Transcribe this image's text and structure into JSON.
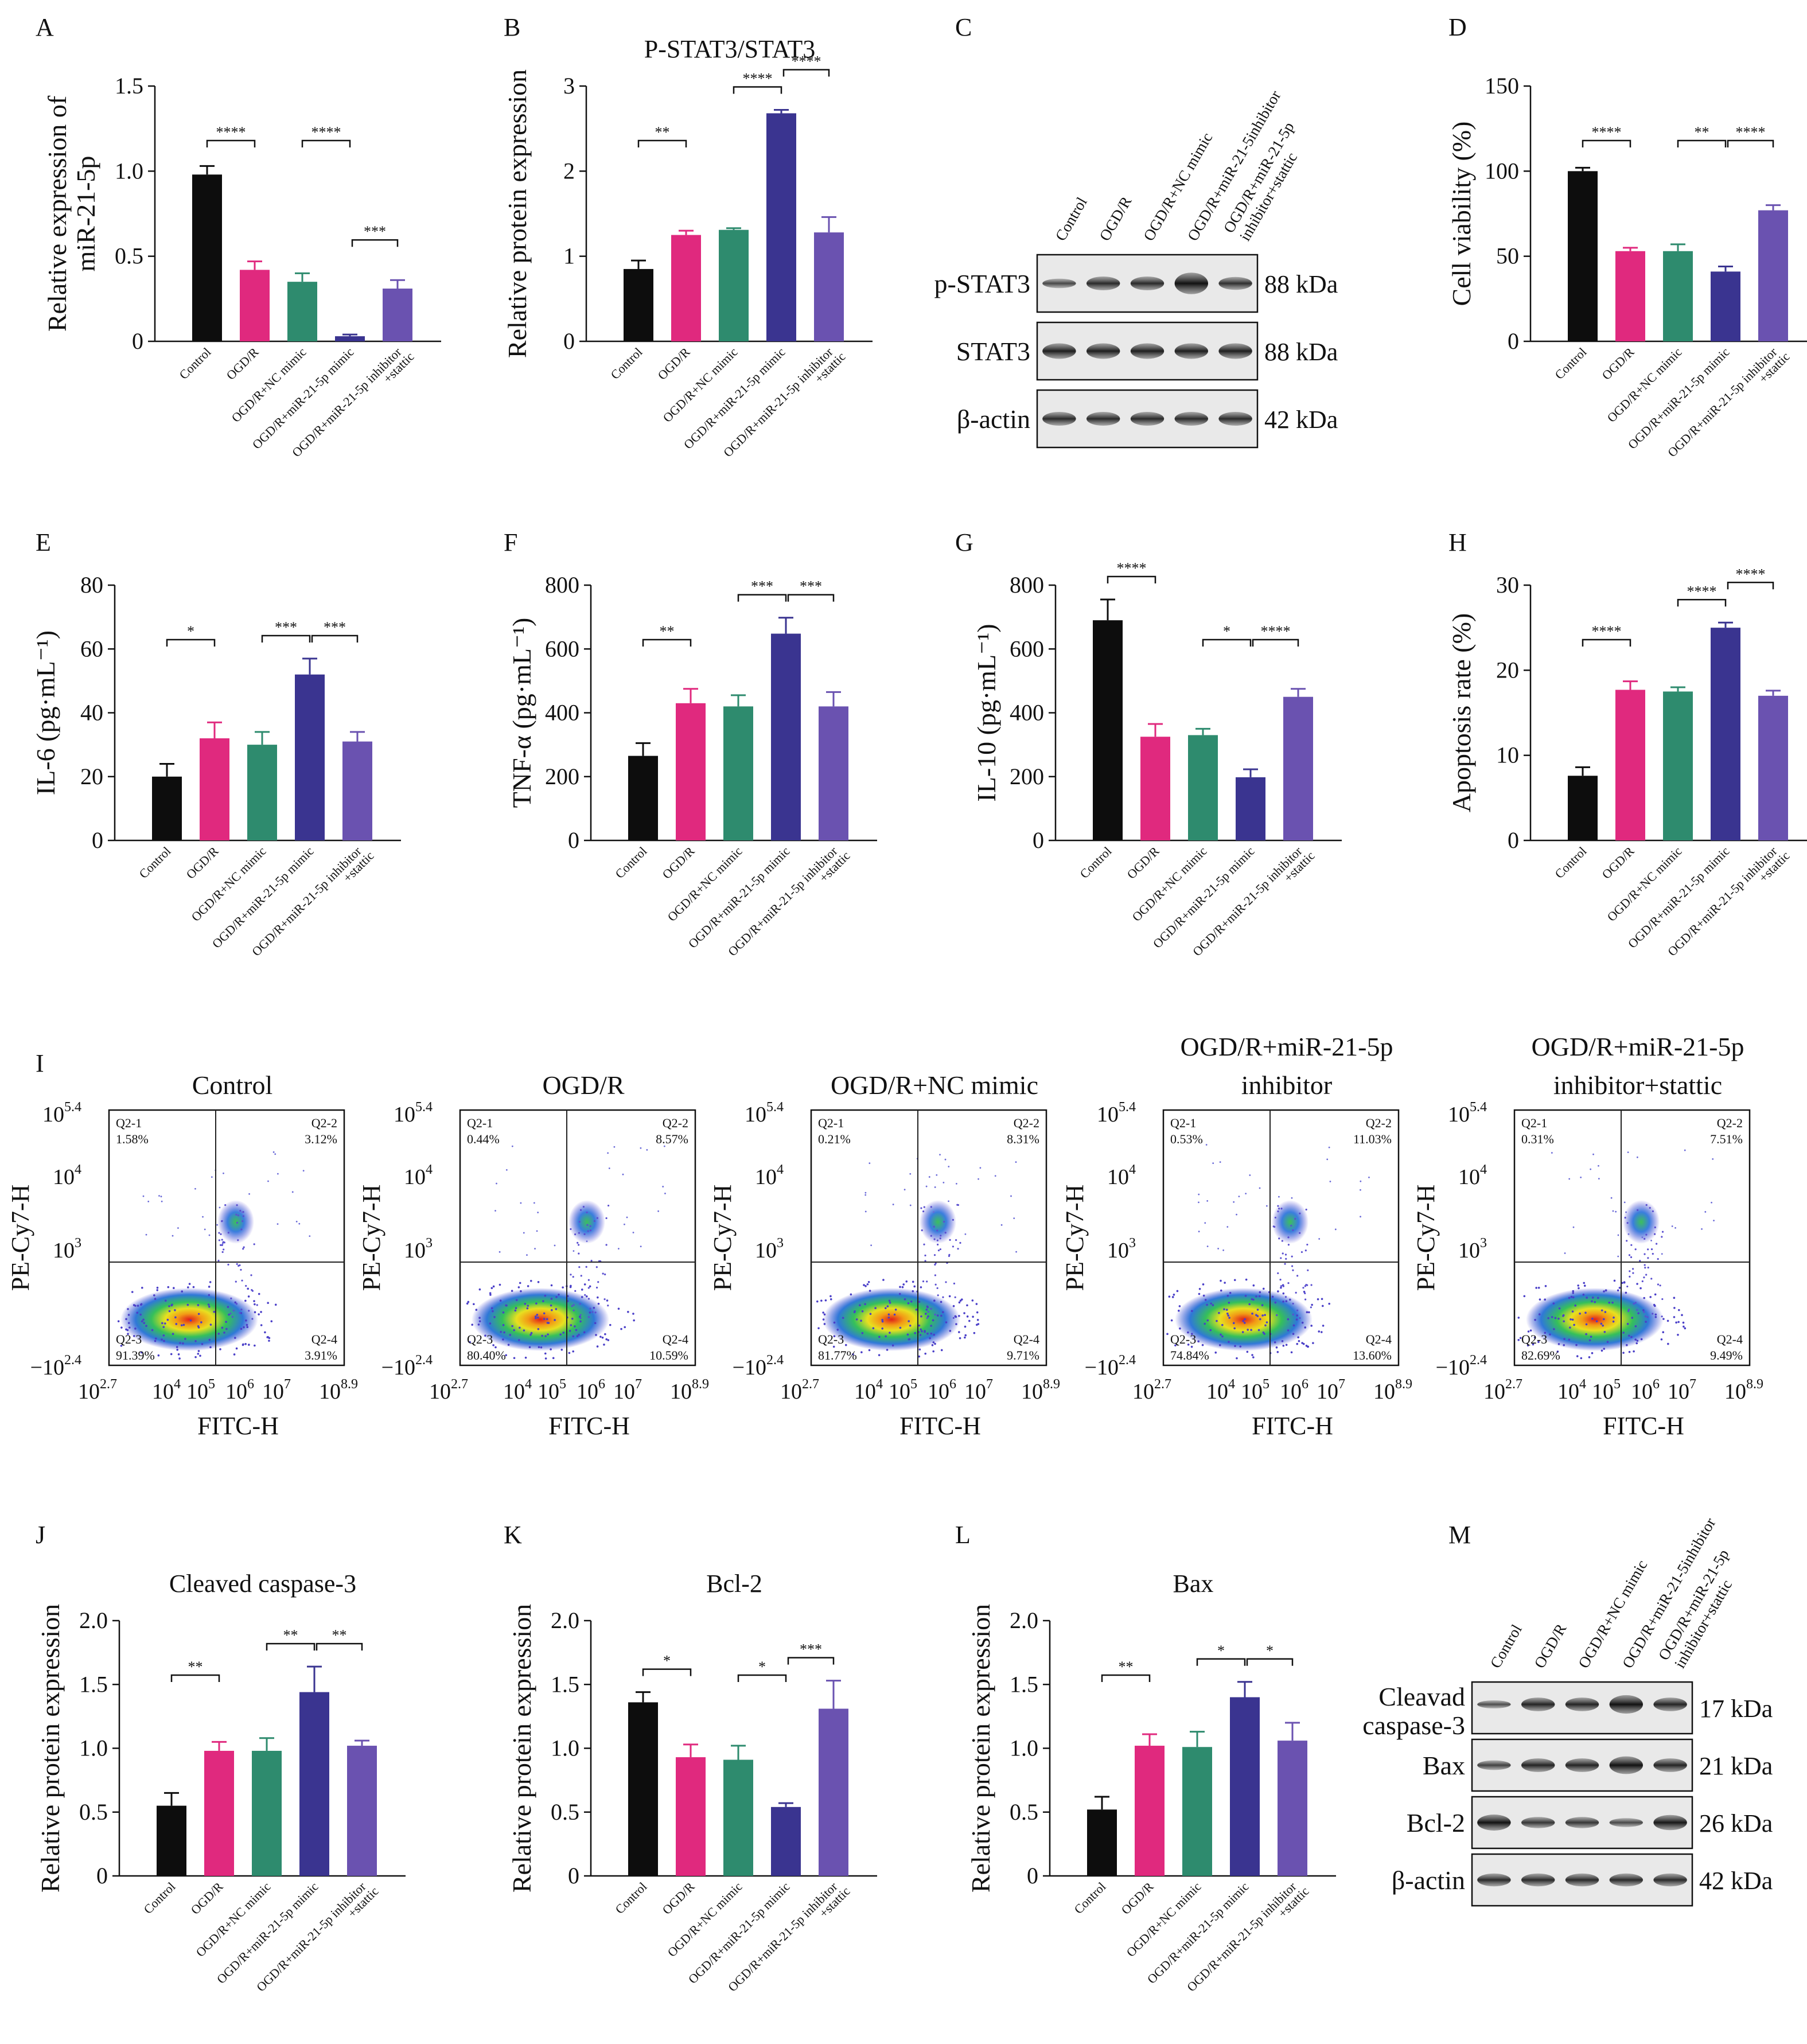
{
  "groups": [
    "Control",
    "OGD/R",
    "OGD/R+NC mimic",
    "OGD/R+miR-21-5p mimic",
    "OGD/R+miR-21-5p inhibitor",
    "+stattic"
  ],
  "colors": [
    "#0d0d0d",
    "#e0297e",
    "#2e8b6e",
    "#3a3490",
    "#6a52b0"
  ],
  "panel_letters": {
    "A": "A",
    "B": "B",
    "C": "C",
    "D": "D",
    "E": "E",
    "F": "F",
    "G": "G",
    "H": "H",
    "I": "I",
    "J": "J",
    "K": "K",
    "L": "L",
    "M": "M"
  },
  "chart_data": [
    {
      "id": "A",
      "type": "bar",
      "title": "",
      "ylabel": "Relative expression of miR-21-5p",
      "ylim": [
        0,
        1.5
      ],
      "yticks": [
        "0",
        "0.5",
        "1.0",
        "1.5"
      ],
      "values": [
        0.98,
        0.42,
        0.35,
        0.03,
        0.31
      ],
      "errors": [
        0.05,
        0.05,
        0.05,
        0.01,
        0.05
      ],
      "significance": [
        {
          "from": 0,
          "to": 1,
          "label": "****",
          "level": 0
        },
        {
          "from": 2,
          "to": 3,
          "label": "****",
          "level": 0
        },
        {
          "from": 3,
          "to": 4,
          "label": "***",
          "level": 1
        }
      ]
    },
    {
      "id": "B",
      "type": "bar",
      "title": "P-STAT3/STAT3",
      "ylabel": "Relative protein expression",
      "ylim": [
        0,
        3
      ],
      "yticks": [
        "0",
        "1",
        "2",
        "3"
      ],
      "values": [
        0.85,
        1.25,
        1.31,
        2.68,
        1.28
      ],
      "errors": [
        0.1,
        0.05,
        0.02,
        0.04,
        0.18
      ],
      "significance": [
        {
          "from": 0,
          "to": 1,
          "label": "**",
          "level": 0
        },
        {
          "from": 2,
          "to": 3,
          "label": "****",
          "level": 0
        },
        {
          "from": 3,
          "to": 4,
          "label": "****",
          "level": 1
        }
      ]
    },
    {
      "id": "D",
      "type": "bar",
      "title": "",
      "ylabel": "Cell viability (%)",
      "ylim": [
        0,
        150
      ],
      "yticks": [
        "0",
        "50",
        "100",
        "150"
      ],
      "values": [
        100,
        53,
        53,
        41,
        77
      ],
      "errors": [
        2,
        2,
        4,
        3,
        3
      ],
      "significance": [
        {
          "from": 0,
          "to": 1,
          "label": "****",
          "level": 0
        },
        {
          "from": 2,
          "to": 3,
          "label": "**",
          "level": 0
        },
        {
          "from": 3,
          "to": 4,
          "label": "****",
          "level": 0
        }
      ]
    },
    {
      "id": "E",
      "type": "bar",
      "title": "",
      "ylabel": "IL-6 (pg·mL⁻¹)",
      "ylim": [
        0,
        80
      ],
      "yticks": [
        "0",
        "20",
        "40",
        "60",
        "80"
      ],
      "values": [
        20,
        32,
        30,
        52,
        31
      ],
      "errors": [
        4,
        5,
        4,
        5,
        3
      ],
      "significance": [
        {
          "from": 0,
          "to": 1,
          "label": "*",
          "level": 0
        },
        {
          "from": 2,
          "to": 3,
          "label": "***",
          "level": 0
        },
        {
          "from": 3,
          "to": 4,
          "label": "***",
          "level": 0
        }
      ]
    },
    {
      "id": "F",
      "type": "bar",
      "title": "",
      "ylabel": "TNF-α (pg·mL⁻¹)",
      "ylim": [
        0,
        800
      ],
      "yticks": [
        "0",
        "200",
        "400",
        "600",
        "800"
      ],
      "values": [
        265,
        430,
        420,
        648,
        420
      ],
      "errors": [
        40,
        45,
        35,
        50,
        45
      ],
      "significance": [
        {
          "from": 0,
          "to": 1,
          "label": "**",
          "level": 0
        },
        {
          "from": 2,
          "to": 3,
          "label": "***",
          "level": 0
        },
        {
          "from": 3,
          "to": 4,
          "label": "***",
          "level": 0
        }
      ]
    },
    {
      "id": "G",
      "type": "bar",
      "title": "",
      "ylabel": "IL-10 (pg·mL⁻¹)",
      "ylim": [
        0,
        800
      ],
      "yticks": [
        "0",
        "200",
        "400",
        "600",
        "800"
      ],
      "values": [
        690,
        325,
        330,
        198,
        450
      ],
      "errors": [
        65,
        40,
        20,
        25,
        25
      ],
      "significance": [
        {
          "from": 0,
          "to": 1,
          "label": "****",
          "level": 0
        },
        {
          "from": 2,
          "to": 3,
          "label": "*",
          "level": 0
        },
        {
          "from": 3,
          "to": 4,
          "label": "****",
          "level": 0
        }
      ]
    },
    {
      "id": "H",
      "type": "bar",
      "title": "",
      "ylabel": "Apoptosis rate (%)",
      "ylim": [
        0,
        30
      ],
      "yticks": [
        "0",
        "10",
        "20",
        "30"
      ],
      "values": [
        7.6,
        17.7,
        17.5,
        25.0,
        17.0
      ],
      "errors": [
        1.0,
        1.0,
        0.5,
        0.6,
        0.6
      ],
      "significance": [
        {
          "from": 0,
          "to": 1,
          "label": "****",
          "level": 0
        },
        {
          "from": 2,
          "to": 3,
          "label": "****",
          "level": 0
        },
        {
          "from": 3,
          "to": 4,
          "label": "****",
          "level": 1
        }
      ]
    },
    {
      "id": "J",
      "type": "bar",
      "title": "Cleaved caspase-3",
      "ylabel": "Relative protein expression",
      "ylim": [
        0,
        2.0
      ],
      "yticks": [
        "0",
        "0.5",
        "1.0",
        "1.5",
        "2.0"
      ],
      "values": [
        0.55,
        0.98,
        0.98,
        1.44,
        1.02
      ],
      "errors": [
        0.1,
        0.07,
        0.1,
        0.2,
        0.04
      ],
      "significance": [
        {
          "from": 0,
          "to": 1,
          "label": "**",
          "level": 0
        },
        {
          "from": 2,
          "to": 3,
          "label": "**",
          "level": 0
        },
        {
          "from": 3,
          "to": 4,
          "label": "**",
          "level": 0
        }
      ]
    },
    {
      "id": "K",
      "type": "bar",
      "title": "Bcl-2",
      "ylabel": "Relative protein expression",
      "ylim": [
        0,
        2.0
      ],
      "yticks": [
        "0",
        "0.5",
        "1.0",
        "1.5",
        "2.0"
      ],
      "values": [
        1.36,
        0.93,
        0.91,
        0.54,
        1.31
      ],
      "errors": [
        0.08,
        0.1,
        0.11,
        0.03,
        0.22
      ],
      "significance": [
        {
          "from": 0,
          "to": 1,
          "label": "*",
          "level": 0
        },
        {
          "from": 2,
          "to": 3,
          "label": "*",
          "level": 0
        },
        {
          "from": 3,
          "to": 4,
          "label": "***",
          "level": 0
        }
      ]
    },
    {
      "id": "L",
      "type": "bar",
      "title": "Bax",
      "ylabel": "Relative protein expression",
      "ylim": [
        0,
        2.0
      ],
      "yticks": [
        "0",
        "0.5",
        "1.0",
        "1.5",
        "2.0"
      ],
      "values": [
        0.52,
        1.02,
        1.01,
        1.4,
        1.06
      ],
      "errors": [
        0.1,
        0.09,
        0.12,
        0.12,
        0.14
      ],
      "significance": [
        {
          "from": 0,
          "to": 1,
          "label": "**",
          "level": 0
        },
        {
          "from": 2,
          "to": 3,
          "label": "*",
          "level": 0
        },
        {
          "from": 3,
          "to": 4,
          "label": "*",
          "level": 0
        }
      ]
    }
  ],
  "western_C": {
    "headers": [
      "Control",
      "OGD/R",
      "OGD/R+NC mimic",
      "OGD/R+miR-21-5inhibitor",
      "OGD/R+miR-21-5p",
      "inhibitor+stattic"
    ],
    "lanes": [
      {
        "label": "p-STAT3",
        "kda": "88 kDa"
      },
      {
        "label": "STAT3",
        "kda": "88 kDa"
      },
      {
        "label": "β-actin",
        "kda": "42 kDa"
      }
    ]
  },
  "western_M": {
    "headers": [
      "Control",
      "OGD/R",
      "OGD/R+NC mimic",
      "OGD/R+miR-21-5inhibitor",
      "OGD/R+miR-21-5p",
      "inhibitor+stattic"
    ],
    "lanes": [
      {
        "label": "Cleavad",
        "label2": "caspase-3",
        "kda": "17 kDa"
      },
      {
        "label": "Bax",
        "label2": "",
        "kda": "21 kDa"
      },
      {
        "label": "Bcl-2",
        "label2": "",
        "kda": "26 kDa"
      },
      {
        "label": "β-actin",
        "label2": "",
        "kda": "42 kDa"
      }
    ]
  },
  "flow_I": {
    "ylabel": "PE-Cy7-H",
    "xlabel": "FITC-H",
    "yticks": [
      "10",
      "10",
      "10",
      "−10"
    ],
    "ytick_exps": [
      "5.4",
      "4",
      "3",
      "2.4"
    ],
    "xticks": [
      "10",
      "10",
      "10",
      "10",
      "10",
      "10"
    ],
    "xtick_exps": [
      "2.7",
      "4",
      "5",
      "6",
      "7",
      "8.9"
    ],
    "quadrant_names": [
      "Q2-1",
      "Q2-2",
      "Q2-3",
      "Q2-4"
    ],
    "plots": [
      {
        "title": "Control",
        "title2": "",
        "q1": "1.58%",
        "q2": "3.12%",
        "q3": "91.39%",
        "q4": "3.91%"
      },
      {
        "title": "OGD/R",
        "title2": "",
        "q1": "0.44%",
        "q2": "8.57%",
        "q3": "80.40%",
        "q4": "10.59%"
      },
      {
        "title": "OGD/R+NC  mimic",
        "title2": "",
        "q1": "0.21%",
        "q2": "8.31%",
        "q3": "81.77%",
        "q4": "9.71%"
      },
      {
        "title": "OGD/R+miR-21-5p",
        "title2": "inhibitor",
        "q1": "0.53%",
        "q2": "11.03%",
        "q3": "74.84%",
        "q4": "13.60%"
      },
      {
        "title": "OGD/R+miR-21-5p",
        "title2": "inhibitor+stattic",
        "q1": "0.31%",
        "q2": "7.51%",
        "q3": "82.69%",
        "q4": "9.49%"
      }
    ]
  }
}
